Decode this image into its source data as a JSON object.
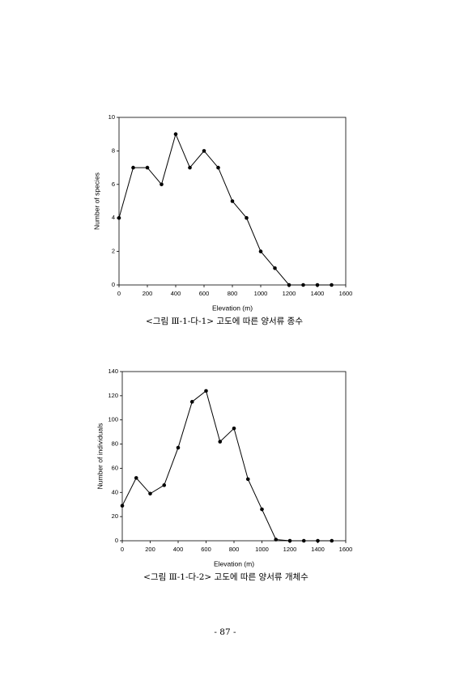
{
  "chart_data": [
    {
      "type": "line",
      "x_label": "Elevation (m)",
      "y_label": "Number of species",
      "x": [
        0,
        100,
        200,
        300,
        400,
        500,
        600,
        700,
        800,
        900,
        1000,
        1100,
        1200,
        1300,
        1400,
        1500
      ],
      "values": [
        4,
        7,
        7,
        6,
        9,
        7,
        8,
        7,
        5,
        4,
        2,
        1,
        0,
        0,
        0,
        0
      ],
      "color": "#000000",
      "xlim": [
        0,
        1600
      ],
      "xticks": [
        0,
        200,
        400,
        600,
        800,
        1000,
        1200,
        1400,
        1600
      ],
      "ylim": [
        0,
        10
      ],
      "yticks": [
        0,
        2,
        4,
        6,
        8,
        10
      ],
      "caption": "<그림 Ⅲ-1-다-1> 고도에 따른 양서류 종수"
    },
    {
      "type": "line",
      "x_label": "Elevation (m)",
      "y_label": "Number of individuals",
      "x": [
        0,
        100,
        200,
        300,
        400,
        500,
        600,
        700,
        800,
        900,
        1000,
        1100,
        1200,
        1300,
        1400,
        1500
      ],
      "values": [
        29,
        52,
        39,
        46,
        77,
        115,
        124,
        82,
        93,
        51,
        26,
        1,
        0,
        0,
        0,
        0
      ],
      "color": "#000000",
      "xlim": [
        0,
        1600
      ],
      "xticks": [
        0,
        200,
        400,
        600,
        800,
        1000,
        1200,
        1400,
        1600
      ],
      "ylim": [
        0,
        140
      ],
      "yticks": [
        0,
        20,
        40,
        60,
        80,
        100,
        120,
        140
      ],
      "caption": "<그림 Ⅲ-1-다-2> 고도에 따른 양서류 개체수"
    }
  ],
  "page_number": "- 87 -"
}
